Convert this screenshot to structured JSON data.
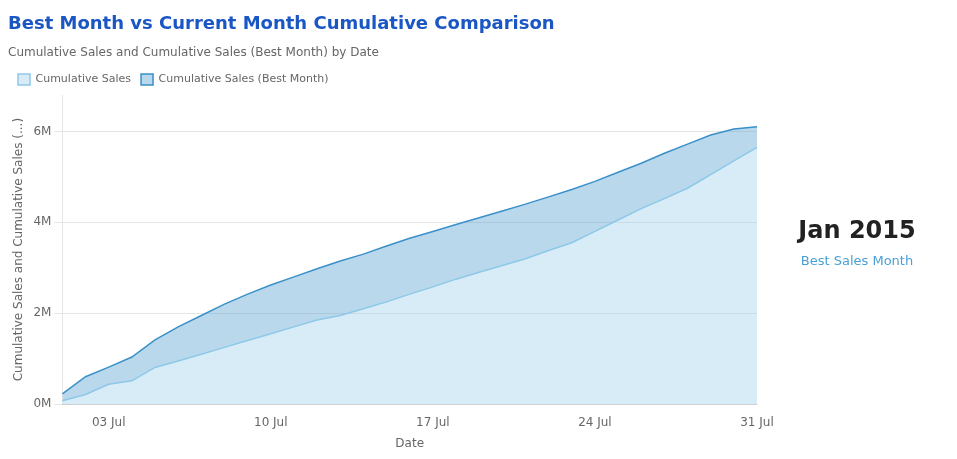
{
  "chart_data": {
    "type": "area",
    "title": "Best Month vs Current Month Cumulative Comparison",
    "subtitle": "Cumulative Sales and Cumulative Sales (Best Month) by Date",
    "x_label": "Date",
    "y_label": "Cumulative Sales and Cumulative Sales (...)",
    "categories": [
      null,
      null,
      "03 Jul",
      null,
      null,
      null,
      null,
      null,
      null,
      "10 Jul",
      null,
      null,
      null,
      null,
      null,
      null,
      "17 Jul",
      null,
      null,
      null,
      null,
      null,
      null,
      "24 Jul",
      null,
      null,
      null,
      null,
      null,
      null,
      "31 Jul"
    ],
    "series": [
      {
        "name": "Cumulative Sales",
        "color": "#8ec8e8",
        "values": [
          77056.7,
          213328.0,
          437309.0,
          513380.8,
          807872.6,
          950000,
          1100000,
          1250000,
          1400000,
          1550000,
          1700000,
          1850000,
          1950000,
          2100000,
          2250000,
          2420000,
          2580000,
          2750000,
          2900000,
          3050000,
          3200000,
          3380000,
          3550000,
          3800000,
          4050000,
          4300000,
          4520000,
          4750000,
          5050000,
          5350000,
          5650000
        ]
      },
      {
        "name": "Cumulative Sales (Best Month)",
        "color": "#3a90c8",
        "values": [
          225240.6,
          604755.4,
          814766.9,
          1037093.0,
          1412996.5,
          1700000,
          1950000,
          2200000,
          2420000,
          2620000,
          2800000,
          2980000,
          3150000,
          3300000,
          3480000,
          3650000,
          3800000,
          3950000,
          4100000,
          4250000,
          4400000,
          4560000,
          4720000,
          4900000,
          5100000,
          5300000,
          5520000,
          5720000,
          5920000,
          6050000,
          6100000
        ]
      }
    ],
    "ylim": [
      0,
      6800000
    ],
    "yticks": [
      {
        "value": 0,
        "label": "0M"
      },
      {
        "value": 2000000,
        "label": "2M"
      },
      {
        "value": 4000000,
        "label": "4M"
      },
      {
        "value": 6000000,
        "label": "6M"
      }
    ],
    "grid": true,
    "legend": "top",
    "annotations": [
      "Jan 2015",
      "Best Sales Month"
    ]
  }
}
